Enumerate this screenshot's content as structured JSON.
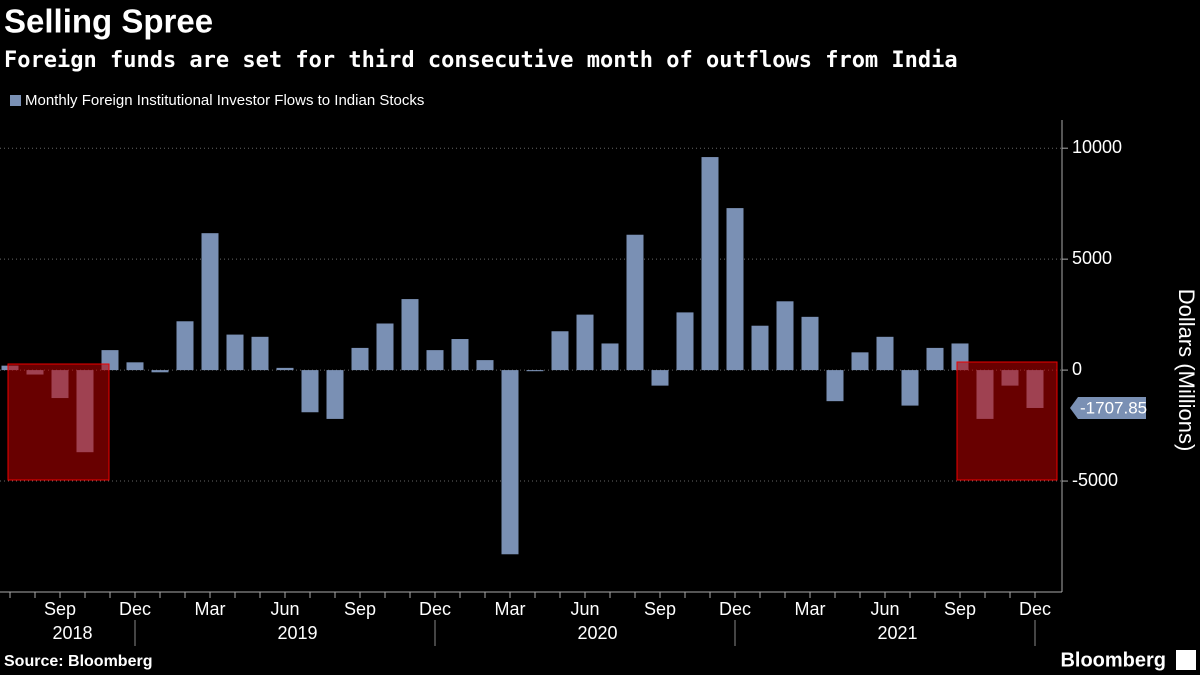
{
  "chart_data": {
    "type": "bar",
    "title": "Selling Spree",
    "subtitle": "Foreign funds are set for third consecutive month of outflows from India",
    "source": "Source: Bloomberg",
    "brand": "Bloomberg",
    "y_axis_label": "Dollars (Millions)",
    "categories": [
      null,
      null,
      "Sep",
      null,
      null,
      "Dec",
      null,
      null,
      "Mar",
      null,
      null,
      "Jun",
      null,
      null,
      "Sep",
      null,
      null,
      "Dec",
      null,
      null,
      "Mar",
      null,
      null,
      "Jun",
      null,
      null,
      "Sep",
      null,
      null,
      "Dec",
      null,
      null,
      "Mar",
      null,
      null,
      "Jun",
      null,
      null,
      "Sep",
      null,
      null,
      "Dec"
    ],
    "years": [
      "2018",
      "2019",
      "2020",
      "2021"
    ],
    "series": [
      {
        "name": "Monthly Foreign Institutional Investor Flows to Indian Stocks",
        "color": "#7a90b4",
        "values": [
          200,
          -200,
          -1260,
          -3700,
          900,
          350,
          -100,
          2200,
          6170,
          1600,
          1500,
          100,
          -1900,
          -2200,
          1000,
          2100,
          3200,
          900,
          1400,
          450,
          -8300,
          -50,
          1750,
          2500,
          1200,
          6100,
          -700,
          2600,
          9600,
          7300,
          2000,
          3100,
          2400,
          -1400,
          800,
          1500,
          -1600,
          1000,
          1200,
          -2200,
          -700,
          -1707.85
        ]
      }
    ],
    "ylim": [
      -10000,
      11000
    ],
    "yticks": [
      -5000,
      0,
      5000,
      10000
    ],
    "grid": true
  }
}
